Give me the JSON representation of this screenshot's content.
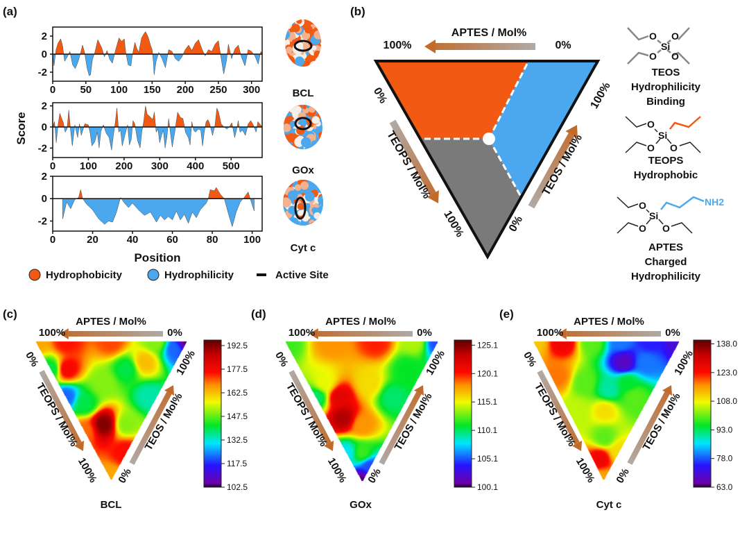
{
  "panels": {
    "a": "(a)",
    "b": "(b)",
    "c": "(c)",
    "d": "(d)",
    "e": "(e)"
  },
  "panel_a": {
    "ylabel": "Score",
    "xlabel": "Position",
    "legend": {
      "hydrophobicity": "Hydrophobicity",
      "hydrophilicity": "Hydrophilicity",
      "active_site": "Active Site"
    },
    "proteins": [
      "BCL",
      "GOx",
      "Cyt c"
    ]
  },
  "panel_b": {
    "top_axis": "APTES / Mol%",
    "left_axis": "TEOPS / Mol%",
    "right_axis": "TEOS / Mol%",
    "top_left": "100%",
    "top_right": "0%",
    "left_top": "0%",
    "left_bottom": "100%",
    "right_top": "100%",
    "right_bottom": "0%",
    "molecules": [
      {
        "name": "TEOS",
        "desc1": "Hydrophilicity",
        "desc2": "Binding"
      },
      {
        "name": "TEOPS",
        "desc1": "Hydrophobic"
      },
      {
        "name": "APTES",
        "desc1": "Charged",
        "desc2": "Hydrophilicity",
        "group": "NH2"
      }
    ],
    "atoms": {
      "si": "Si",
      "o": "O"
    }
  },
  "ternary_labels": {
    "top_axis": "APTES / Mol%",
    "left_axis": "TEOPS / Mol%",
    "right_axis": "TEOS / Mol%",
    "p100": "100%",
    "p0": "0%"
  },
  "colors": {
    "hydrophobic": "#f25a14",
    "hydrophilic": "#4ba8ef",
    "teops_region": "#7a7a7a",
    "arrow_start": "#b0aaa6",
    "arrow_end": "#c26a2a"
  },
  "chart_data": [
    {
      "type": "area",
      "title": "BCL",
      "xlabel": "Position",
      "ylabel": "Score",
      "xlim": [
        0,
        316
      ],
      "ylim": [
        -3,
        3
      ],
      "xticks": [
        0,
        50,
        100,
        150,
        200,
        250,
        300
      ],
      "yticks": [
        -2,
        0,
        2
      ],
      "x": [
        0,
        2,
        5,
        8,
        12,
        15,
        18,
        22,
        26,
        30,
        34,
        38,
        42,
        45,
        48,
        52,
        55,
        57,
        60,
        64,
        68,
        70,
        74,
        78,
        82,
        86,
        90,
        95,
        100,
        104,
        108,
        110,
        114,
        118,
        120,
        124,
        127,
        130,
        134,
        138,
        140,
        144,
        148,
        150,
        152,
        153,
        156,
        160,
        165,
        170,
        175,
        180,
        185,
        190,
        195,
        200,
        205,
        210,
        215,
        220,
        225,
        230,
        235,
        240,
        245,
        250,
        254,
        258,
        262,
        265,
        270,
        275,
        280,
        285,
        290,
        295,
        300,
        305,
        310,
        314,
        316
      ],
      "y": [
        0,
        -1.3,
        0.5,
        1.2,
        1.7,
        0.9,
        -0.8,
        -0.3,
        0.3,
        -1.2,
        -1.6,
        -0.9,
        0.1,
        1.0,
        0.2,
        -1.6,
        -2.4,
        -2.3,
        -0.6,
        0.3,
        1.6,
        1.3,
        0.7,
        -0.3,
        0.4,
        -0.6,
        -1.0,
        0.5,
        1.8,
        1.4,
        1.7,
        0.3,
        -1.2,
        -1.3,
        -0.2,
        1.3,
        0.6,
        0.2,
        1.8,
        2.3,
        2.5,
        1.9,
        0.9,
        0.5,
        -1.0,
        -2.3,
        -0.8,
        0.2,
        -0.5,
        -1.5,
        0.5,
        0.3,
        -0.5,
        -0.8,
        -0.3,
        0.5,
        1.0,
        0.4,
        1.2,
        1.6,
        0.6,
        -0.2,
        0.5,
        0.3,
        1.1,
        1.5,
        -0.4,
        -2.2,
        -0.8,
        1.1,
        -0.5,
        0.6,
        1.0,
        -0.4,
        -1.3,
        0.5,
        0.3,
        -0.2,
        -1.1,
        0.3,
        0
      ],
      "positive_color": "#f25a14",
      "negative_color": "#4ba8ef"
    },
    {
      "type": "area",
      "title": "GOx",
      "xlabel": "Position",
      "ylabel": "Score",
      "xlim": [
        0,
        587
      ],
      "ylim": [
        -2.9,
        2.3
      ],
      "xticks": [
        0,
        100,
        200,
        300,
        400,
        500
      ],
      "yticks": [
        -2,
        0,
        2
      ],
      "x": [
        0,
        5,
        10,
        15,
        20,
        25,
        30,
        35,
        40,
        45,
        50,
        55,
        62,
        70,
        75,
        80,
        90,
        100,
        105,
        110,
        118,
        125,
        130,
        135,
        142,
        150,
        158,
        165,
        170,
        175,
        180,
        185,
        190,
        195,
        203,
        210,
        215,
        220,
        225,
        230,
        238,
        245,
        250,
        255,
        260,
        265,
        272,
        280,
        285,
        290,
        295,
        300,
        305,
        310,
        315,
        320,
        325,
        330,
        335,
        342,
        350,
        358,
        365,
        372,
        380,
        385,
        390,
        395,
        400,
        408,
        415,
        420,
        425,
        430,
        435,
        440,
        448,
        455,
        460,
        465,
        472,
        480,
        488,
        495,
        502,
        510,
        515,
        520,
        525,
        532,
        540,
        548,
        555,
        562,
        570,
        575,
        580,
        587
      ],
      "y": [
        0,
        0.5,
        -1.5,
        0.2,
        1.3,
        0.8,
        0.4,
        -0.5,
        -0.2,
        1.6,
        -0.3,
        -1.8,
        0.2,
        -1.0,
        0.3,
        -0.8,
        0.3,
        0.2,
        -0.6,
        -1.8,
        -1.4,
        -0.5,
        -2.0,
        -0.4,
        0.2,
        -0.6,
        -1.0,
        -2.2,
        -0.8,
        0.3,
        1.8,
        -0.5,
        -0.3,
        -1.8,
        -0.7,
        0.2,
        -1.7,
        -1.2,
        0.6,
        0.3,
        -1.3,
        -2.0,
        -0.4,
        0.5,
        2.0,
        1.2,
        1.0,
        0.7,
        1.4,
        -0.5,
        -0.2,
        -1.5,
        -0.8,
        -0.3,
        -2.0,
        -1.0,
        0.8,
        -0.6,
        -1.9,
        -0.5,
        1.4,
        0.9,
        0.8,
        -0.5,
        -1.0,
        -1.7,
        0.5,
        -0.3,
        -0.5,
        -0.2,
        -0.3,
        -1.8,
        -0.4,
        0.5,
        0.7,
        0.3,
        -0.8,
        0.2,
        1.8,
        1.4,
        0.3,
        0,
        -0.2,
        0,
        0.4,
        -1.0,
        -0.3,
        0.6,
        -0.5,
        -0.3,
        -0.8,
        0.3,
        0.6,
        0.2,
        -0.5,
        0.5,
        0.3,
        0
      ],
      "positive_color": "#f25a14",
      "negative_color": "#4ba8ef"
    },
    {
      "type": "area",
      "title": "Cyt c",
      "xlabel": "Position",
      "ylabel": "Score",
      "xlim": [
        0,
        105
      ],
      "ylim": [
        -2.9,
        2
      ],
      "xticks": [
        0,
        20,
        40,
        60,
        80,
        100
      ],
      "yticks": [
        -2,
        0,
        2
      ],
      "x": [
        5,
        7,
        9,
        11,
        13,
        14,
        15,
        17,
        20,
        23,
        26,
        28,
        30,
        32,
        34,
        36,
        38,
        40,
        43,
        46,
        49,
        52,
        54,
        56,
        58,
        60,
        62,
        64,
        66,
        68,
        70,
        72,
        74,
        77,
        78,
        79,
        81,
        82,
        84,
        86,
        88,
        90,
        92,
        94,
        96,
        98,
        99,
        101
      ],
      "y": [
        -1.8,
        -0.3,
        -0.9,
        -0.1,
        0.1,
        0.8,
        0,
        -0.5,
        -1.0,
        -1.8,
        -2.3,
        -2.0,
        -2.1,
        -1.2,
        0.1,
        -0.4,
        -0.8,
        -0.4,
        -1.0,
        -1.5,
        -1.2,
        -2.1,
        -1.5,
        -1.9,
        -1.6,
        -1.9,
        -1.1,
        -1.9,
        -1.4,
        -2.2,
        -1.2,
        -1.7,
        -1.0,
        -0.4,
        0,
        0.8,
        0.7,
        1.0,
        0.4,
        0,
        -1.3,
        -2.5,
        -1.2,
        -0.3,
        0.1,
        0.6,
        0,
        -1.1
      ],
      "positive_color": "#f25a14",
      "negative_color": "#4ba8ef"
    },
    {
      "type": "heatmap",
      "subtype": "ternary",
      "title": "BCL",
      "axes": [
        "APTES",
        "TEOS",
        "TEOPS"
      ],
      "colorbar": {
        "min": 102.5,
        "max": 196,
        "ticks": [
          "192.5",
          "177.5",
          "162.5",
          "147.5",
          "132.5",
          "117.5",
          "102.5"
        ]
      },
      "points": [
        [
          1,
          0,
          0,
          165
        ],
        [
          0.8,
          0.2,
          0,
          175
        ],
        [
          0.5,
          0.5,
          0,
          172
        ],
        [
          0.2,
          0.8,
          0,
          150
        ],
        [
          0,
          1,
          0,
          104
        ],
        [
          0.05,
          0.9,
          0.05,
          122
        ],
        [
          0.7,
          0.1,
          0.2,
          178
        ],
        [
          0.6,
          0,
          0.4,
          122
        ],
        [
          0.8,
          0,
          0.2,
          140
        ],
        [
          0.4,
          0.3,
          0.3,
          150
        ],
        [
          0.3,
          0.5,
          0.2,
          140
        ],
        [
          0.25,
          0.15,
          0.6,
          193
        ],
        [
          0.1,
          0.3,
          0.6,
          150
        ],
        [
          0.05,
          0.55,
          0.4,
          135
        ],
        [
          0.35,
          0,
          0.65,
          170
        ],
        [
          0,
          0.2,
          0.8,
          176
        ],
        [
          0,
          0,
          1,
          165
        ],
        [
          0.45,
          0.1,
          0.45,
          140
        ],
        [
          0.2,
          0.65,
          0.15,
          163
        ]
      ]
    },
    {
      "type": "heatmap",
      "subtype": "ternary",
      "title": "GOx",
      "axes": [
        "APTES",
        "TEOS",
        "TEOPS"
      ],
      "colorbar": {
        "min": 100.1,
        "max": 126,
        "ticks": [
          "125.1",
          "120.1",
          "115.1",
          "110.1",
          "105.1",
          "100.1"
        ]
      },
      "points": [
        [
          1,
          0,
          0,
          112
        ],
        [
          0.7,
          0.3,
          0,
          118
        ],
        [
          0.4,
          0.6,
          0,
          120
        ],
        [
          0.15,
          0.85,
          0,
          114
        ],
        [
          0,
          1,
          0,
          105
        ],
        [
          0.1,
          0.7,
          0.2,
          111
        ],
        [
          0.6,
          0.1,
          0.3,
          115
        ],
        [
          0.45,
          0.15,
          0.4,
          122
        ],
        [
          0.35,
          0.1,
          0.55,
          124
        ],
        [
          0.3,
          0.4,
          0.3,
          116
        ],
        [
          0.2,
          0.2,
          0.6,
          118
        ],
        [
          0.6,
          0,
          0.4,
          110
        ],
        [
          0.1,
          0.5,
          0.4,
          110
        ],
        [
          0.1,
          0.1,
          0.8,
          112
        ],
        [
          0,
          0.1,
          0.9,
          105
        ],
        [
          0,
          0,
          1,
          100.5
        ],
        [
          0.2,
          0,
          0.8,
          108
        ]
      ]
    },
    {
      "type": "heatmap",
      "subtype": "ternary",
      "title": "Cyt c",
      "axes": [
        "APTES",
        "TEOS",
        "TEOPS"
      ],
      "colorbar": {
        "min": 63.0,
        "max": 140,
        "ticks": [
          "138.0",
          "123.0",
          "108.0",
          "93.0",
          "78.0",
          "63.0"
        ]
      },
      "points": [
        [
          1,
          0,
          0,
          112
        ],
        [
          0.8,
          0.2,
          0,
          126
        ],
        [
          0.6,
          0.4,
          0,
          100
        ],
        [
          0.4,
          0.6,
          0,
          80
        ],
        [
          0.2,
          0.8,
          0,
          75
        ],
        [
          0,
          1,
          0,
          70
        ],
        [
          0.3,
          0.55,
          0.15,
          68
        ],
        [
          0.15,
          0.7,
          0.15,
          80
        ],
        [
          0.7,
          0.05,
          0.25,
          118
        ],
        [
          0.5,
          0.2,
          0.3,
          100
        ],
        [
          0.3,
          0.35,
          0.35,
          90
        ],
        [
          0.2,
          0.5,
          0.3,
          95
        ],
        [
          0.45,
          0.05,
          0.5,
          105
        ],
        [
          0.25,
          0.25,
          0.5,
          110
        ],
        [
          0.1,
          0.5,
          0.4,
          100
        ],
        [
          0.15,
          0.15,
          0.7,
          100
        ],
        [
          0,
          0.2,
          0.8,
          110
        ],
        [
          0.1,
          0.05,
          0.85,
          126
        ],
        [
          0,
          0,
          1,
          115
        ]
      ]
    }
  ]
}
